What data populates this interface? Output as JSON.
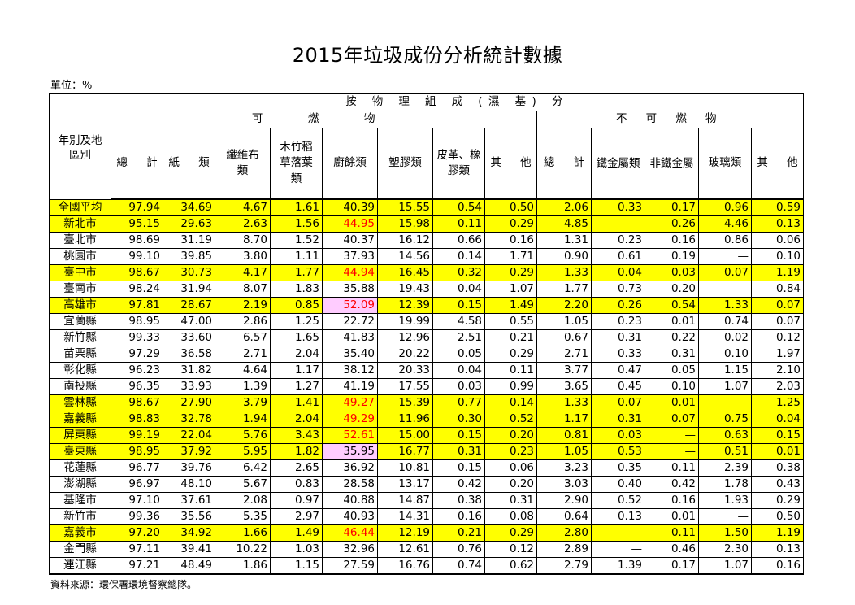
{
  "title": "2015年垃圾成份分析統計數據",
  "unit": "單位：%",
  "header": {
    "region": "年別及地區別",
    "group": "按 物 理 組 成 (濕 基) 分",
    "combustible": "可 燃 物",
    "noncombustible": "不 可 燃 物",
    "cols": [
      "總 計",
      "紙 類",
      "纖維布類",
      "木竹稻草落葉類",
      "廚餘類",
      "塑膠類",
      "皮革、橡膠類",
      "其 他",
      "總 計",
      "鐵金屬類",
      "非鐵金屬",
      "玻璃類",
      "其 他"
    ]
  },
  "rows": [
    {
      "region": "全國平均",
      "highlight": true,
      "values": [
        "97.94",
        "34.69",
        "4.67",
        "1.61",
        "40.39",
        "15.55",
        "0.54",
        "0.50",
        "2.06",
        "0.33",
        "0.17",
        "0.96",
        "0.59"
      ]
    },
    {
      "region": "新北市",
      "highlight": true,
      "food_waste_style": "red",
      "values": [
        "95.15",
        "29.63",
        "2.63",
        "1.56",
        "44.95",
        "15.98",
        "0.11",
        "0.29",
        "4.85",
        "—",
        "0.26",
        "4.46",
        "0.13"
      ]
    },
    {
      "region": "臺北市",
      "highlight": false,
      "values": [
        "98.69",
        "31.19",
        "8.70",
        "1.52",
        "40.37",
        "16.12",
        "0.66",
        "0.16",
        "1.31",
        "0.23",
        "0.16",
        "0.86",
        "0.06"
      ]
    },
    {
      "region": "桃園市",
      "highlight": false,
      "values": [
        "99.10",
        "39.85",
        "3.80",
        "1.11",
        "37.93",
        "14.56",
        "0.14",
        "1.71",
        "0.90",
        "0.61",
        "0.19",
        "—",
        "0.10"
      ]
    },
    {
      "region": "臺中市",
      "highlight": true,
      "food_waste_style": "red",
      "values": [
        "98.67",
        "30.73",
        "4.17",
        "1.77",
        "44.94",
        "16.45",
        "0.32",
        "0.29",
        "1.33",
        "0.04",
        "0.03",
        "0.07",
        "1.19"
      ]
    },
    {
      "region": "臺南市",
      "highlight": false,
      "values": [
        "98.24",
        "31.94",
        "8.07",
        "1.83",
        "35.88",
        "19.43",
        "0.04",
        "1.07",
        "1.77",
        "0.73",
        "0.20",
        "—",
        "0.84"
      ]
    },
    {
      "region": "高雄市",
      "highlight": true,
      "food_waste_style": "red-pink",
      "values": [
        "97.81",
        "28.67",
        "2.19",
        "0.85",
        "52.09",
        "12.39",
        "0.15",
        "1.49",
        "2.20",
        "0.26",
        "0.54",
        "1.33",
        "0.07"
      ]
    },
    {
      "region": "宜蘭縣",
      "highlight": false,
      "values": [
        "98.95",
        "47.00",
        "2.86",
        "1.25",
        "22.72",
        "19.99",
        "4.58",
        "0.55",
        "1.05",
        "0.23",
        "0.01",
        "0.74",
        "0.07"
      ]
    },
    {
      "region": "新竹縣",
      "highlight": false,
      "values": [
        "99.33",
        "33.60",
        "6.57",
        "1.65",
        "41.83",
        "12.96",
        "2.51",
        "0.21",
        "0.67",
        "0.31",
        "0.22",
        "0.02",
        "0.12"
      ]
    },
    {
      "region": "苗栗縣",
      "highlight": false,
      "values": [
        "97.29",
        "36.58",
        "2.71",
        "2.04",
        "35.40",
        "20.22",
        "0.05",
        "0.29",
        "2.71",
        "0.33",
        "0.31",
        "0.10",
        "1.97"
      ]
    },
    {
      "region": "彰化縣",
      "highlight": false,
      "values": [
        "96.23",
        "31.82",
        "4.64",
        "1.17",
        "38.12",
        "20.33",
        "0.04",
        "0.11",
        "3.77",
        "0.47",
        "0.05",
        "1.15",
        "2.10"
      ]
    },
    {
      "region": "南投縣",
      "highlight": false,
      "values": [
        "96.35",
        "33.93",
        "1.39",
        "1.27",
        "41.19",
        "17.55",
        "0.03",
        "0.99",
        "3.65",
        "0.45",
        "0.10",
        "1.07",
        "2.03"
      ]
    },
    {
      "region": "雲林縣",
      "highlight": true,
      "food_waste_style": "red",
      "values": [
        "98.67",
        "27.90",
        "3.79",
        "1.41",
        "49.27",
        "15.39",
        "0.77",
        "0.14",
        "1.33",
        "0.07",
        "0.01",
        "—",
        "1.25"
      ]
    },
    {
      "region": "嘉義縣",
      "highlight": true,
      "food_waste_style": "red",
      "values": [
        "98.83",
        "32.78",
        "1.94",
        "2.04",
        "49.29",
        "11.96",
        "0.30",
        "0.52",
        "1.17",
        "0.31",
        "0.07",
        "0.75",
        "0.04"
      ]
    },
    {
      "region": "屏東縣",
      "highlight": true,
      "food_waste_style": "red",
      "values": [
        "99.19",
        "22.04",
        "5.76",
        "3.43",
        "52.61",
        "15.00",
        "0.15",
        "0.20",
        "0.81",
        "0.03",
        "—",
        "0.63",
        "0.15"
      ]
    },
    {
      "region": "臺東縣",
      "highlight": true,
      "food_waste_style": "pink",
      "values": [
        "98.95",
        "37.92",
        "5.95",
        "1.82",
        "35.95",
        "16.77",
        "0.31",
        "0.23",
        "1.05",
        "0.53",
        "—",
        "0.51",
        "0.01"
      ]
    },
    {
      "region": "花蓮縣",
      "highlight": false,
      "values": [
        "96.77",
        "39.76",
        "6.42",
        "2.65",
        "36.92",
        "10.81",
        "0.15",
        "0.06",
        "3.23",
        "0.35",
        "0.11",
        "2.39",
        "0.38"
      ]
    },
    {
      "region": "澎湖縣",
      "highlight": false,
      "values": [
        "96.97",
        "48.10",
        "5.67",
        "0.83",
        "28.58",
        "13.17",
        "0.42",
        "0.20",
        "3.03",
        "0.40",
        "0.42",
        "1.78",
        "0.43"
      ]
    },
    {
      "region": "基隆市",
      "highlight": false,
      "values": [
        "97.10",
        "37.61",
        "2.08",
        "0.97",
        "40.88",
        "14.87",
        "0.38",
        "0.31",
        "2.90",
        "0.52",
        "0.16",
        "1.93",
        "0.29"
      ]
    },
    {
      "region": "新竹市",
      "highlight": false,
      "values": [
        "99.36",
        "35.56",
        "5.35",
        "2.97",
        "40.93",
        "14.31",
        "0.16",
        "0.08",
        "0.64",
        "0.13",
        "0.01",
        "—",
        "0.50"
      ]
    },
    {
      "region": "嘉義市",
      "highlight": true,
      "food_waste_style": "red",
      "values": [
        "97.20",
        "34.92",
        "1.66",
        "1.49",
        "46.44",
        "12.19",
        "0.21",
        "0.29",
        "2.80",
        "—",
        "0.11",
        "1.50",
        "1.19"
      ]
    },
    {
      "region": "金門縣",
      "highlight": false,
      "values": [
        "97.11",
        "39.41",
        "10.22",
        "1.03",
        "32.96",
        "12.61",
        "0.76",
        "0.12",
        "2.89",
        "—",
        "0.46",
        "2.30",
        "0.13"
      ]
    },
    {
      "region": "連江縣",
      "highlight": false,
      "values": [
        "97.21",
        "48.49",
        "1.86",
        "1.15",
        "27.59",
        "16.76",
        "0.74",
        "0.62",
        "2.79",
        "1.39",
        "0.17",
        "1.07",
        "0.16"
      ]
    }
  ],
  "source": "資料來源：環保署環境督察總隊。"
}
